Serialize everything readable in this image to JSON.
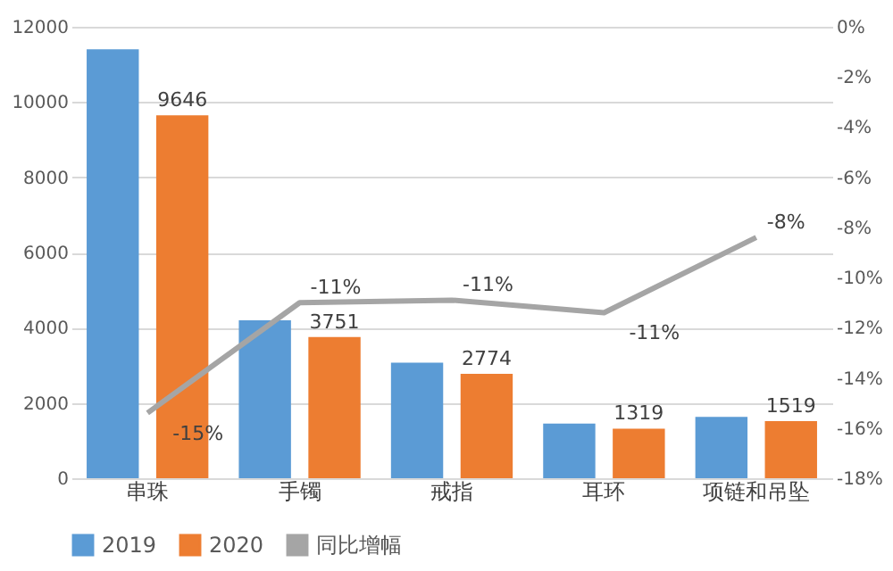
{
  "chart_data": {
    "type": "bar",
    "categories": [
      "串珠",
      "手镯",
      "戒指",
      "耳环",
      "项链和吊坠"
    ],
    "series": [
      {
        "name": "2019",
        "color": "#5b9bd5",
        "values": [
          11400,
          4200,
          3070,
          1450,
          1630
        ]
      },
      {
        "name": "2020",
        "color": "#ed7d31",
        "values": [
          9646,
          3751,
          2774,
          1319,
          1519
        ],
        "value_labels": [
          "9646",
          "3751",
          "2774",
          "1319",
          "1519"
        ]
      },
      {
        "name": "同比增幅",
        "type": "line",
        "axis": "y2",
        "color": "#a5a5a5",
        "values": [
          -15.4,
          -11.0,
          -10.9,
          -11.4,
          -8.4
        ],
        "value_labels": [
          "-15%",
          "-11%",
          "-11%",
          "-11%",
          "-8%"
        ]
      }
    ],
    "ylim": [
      0,
      12000
    ],
    "yticks": [
      0,
      2000,
      4000,
      6000,
      8000,
      10000,
      12000
    ],
    "y2lim": [
      -18,
      0
    ],
    "y2ticks": [
      {
        "value": -18,
        "label": "-18%"
      },
      {
        "value": -16,
        "label": "-16%"
      },
      {
        "value": -14,
        "label": "-14%"
      },
      {
        "value": -12,
        "label": "-12%"
      },
      {
        "value": -10,
        "label": "-10%"
      },
      {
        "value": -8,
        "label": "-8%"
      },
      {
        "value": -6,
        "label": "-6%"
      },
      {
        "value": -4,
        "label": "-4%"
      },
      {
        "value": -2,
        "label": "-2%"
      },
      {
        "value": 0,
        "label": "0%"
      }
    ],
    "grid": "y",
    "legend": "bottom",
    "marker": "none"
  }
}
